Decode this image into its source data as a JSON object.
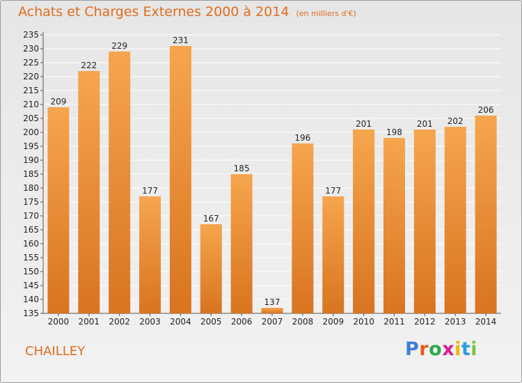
{
  "title": "Achats et Charges Externes 2000 à 2014",
  "unit": "(en milliers d'€)",
  "location": "CHAILLEY",
  "brand": {
    "text": "Proxiti",
    "letter_colors": [
      "#3b7dd8",
      "#e85a1a",
      "#2aa84a",
      "#d61f8e",
      "#f0b400",
      "#2a9de0",
      "#7cc242"
    ]
  },
  "colors": {
    "bar_top": "#f6a54e",
    "bar_bottom": "#d9741f",
    "grid": "#ffffff",
    "text": "#222222",
    "accent": "#e06c1c"
  },
  "chart_data": {
    "type": "bar",
    "title": "Achats et Charges Externes 2000 à 2014",
    "subtitle": "(en milliers d'€)",
    "xlabel": "",
    "ylabel": "",
    "categories": [
      "2000",
      "2001",
      "2002",
      "2003",
      "2004",
      "2005",
      "2006",
      "2007",
      "2008",
      "2009",
      "2010",
      "2011",
      "2012",
      "2013",
      "2014"
    ],
    "values": [
      209,
      222,
      229,
      177,
      231,
      167,
      185,
      137,
      196,
      177,
      201,
      198,
      201,
      202,
      206
    ],
    "ylim": [
      135,
      235
    ],
    "yticks": [
      135,
      140,
      145,
      150,
      155,
      160,
      165,
      170,
      175,
      180,
      185,
      190,
      195,
      200,
      205,
      210,
      215,
      220,
      225,
      230,
      235
    ],
    "grid": true,
    "data_labels": true
  }
}
